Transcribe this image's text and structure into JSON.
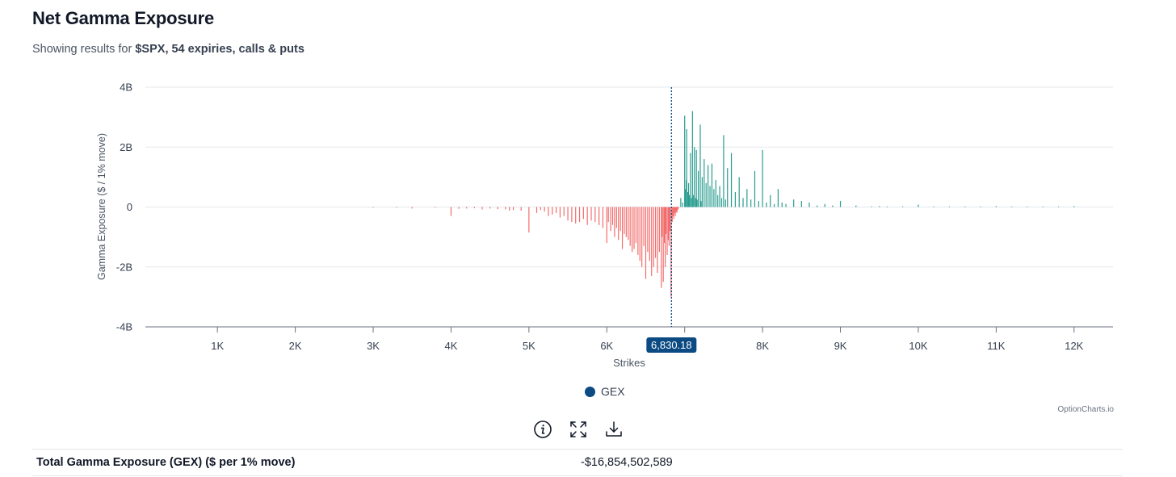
{
  "header": {
    "title": "Net Gamma Exposure",
    "subtitle_prefix": "Showing results for ",
    "subtitle_ticker": "$SPX",
    "subtitle_detail": ", 54 expiries, calls & puts"
  },
  "chart_data": {
    "type": "bar",
    "ylabel": "Gamma Exposure ($ / 1% move)",
    "xlabel": "Strikes",
    "ylim": [
      -4,
      4
    ],
    "y_unit": "B",
    "y_ticks": [
      -4,
      -2,
      0,
      2,
      4
    ],
    "y_tick_labels": [
      "-4B",
      "-2B",
      "0",
      "2B",
      "4B"
    ],
    "x_ticks": [
      1000,
      2000,
      3000,
      4000,
      5000,
      6000,
      7000,
      8000,
      9000,
      10000,
      11000,
      12000
    ],
    "x_tick_labels": [
      "1K",
      "2K",
      "3K",
      "4K",
      "5K",
      "6K",
      "7K",
      "8K",
      "9K",
      "10K",
      "11K",
      "12K"
    ],
    "xlim": [
      75,
      12500
    ],
    "spot": 6830.18,
    "spot_label": "6,830.18",
    "grid": true,
    "legend_position": "bottom-center",
    "colors": {
      "positive": "#2a9d8f",
      "negative": "#f26d6d",
      "spot_line": "#0b4a82",
      "legend": "#0b4a82"
    },
    "series": [
      {
        "name": "GEX",
        "points": [
          [
            3000,
            -0.01
          ],
          [
            3300,
            -0.02
          ],
          [
            3500,
            -0.05
          ],
          [
            3800,
            -0.02
          ],
          [
            4000,
            -0.3
          ],
          [
            4100,
            -0.06
          ],
          [
            4200,
            -0.05
          ],
          [
            4300,
            -0.04
          ],
          [
            4400,
            -0.08
          ],
          [
            4500,
            -0.05
          ],
          [
            4600,
            -0.07
          ],
          [
            4700,
            -0.08
          ],
          [
            4750,
            -0.12
          ],
          [
            4800,
            -0.1
          ],
          [
            4900,
            -0.12
          ],
          [
            5000,
            -0.85
          ],
          [
            5100,
            -0.2
          ],
          [
            5150,
            -0.1
          ],
          [
            5200,
            -0.15
          ],
          [
            5250,
            -0.3
          ],
          [
            5300,
            -0.25
          ],
          [
            5350,
            -0.2
          ],
          [
            5400,
            -0.35
          ],
          [
            5450,
            -0.3
          ],
          [
            5500,
            -0.45
          ],
          [
            5550,
            -0.5
          ],
          [
            5600,
            -0.55
          ],
          [
            5650,
            -0.5
          ],
          [
            5700,
            -0.4
          ],
          [
            5750,
            -0.6
          ],
          [
            5800,
            -0.45
          ],
          [
            5850,
            -0.5
          ],
          [
            5900,
            -0.6
          ],
          [
            5950,
            -0.7
          ],
          [
            6000,
            -1.2
          ],
          [
            6020,
            -0.5
          ],
          [
            6050,
            -0.8
          ],
          [
            6075,
            -0.6
          ],
          [
            6100,
            -1.0
          ],
          [
            6125,
            -0.7
          ],
          [
            6150,
            -1.1
          ],
          [
            6175,
            -0.8
          ],
          [
            6200,
            -1.4
          ],
          [
            6225,
            -0.9
          ],
          [
            6250,
            -1.0
          ],
          [
            6275,
            -1.1
          ],
          [
            6300,
            -1.3
          ],
          [
            6325,
            -1.5
          ],
          [
            6350,
            -1.4
          ],
          [
            6375,
            -1.2
          ],
          [
            6400,
            -1.6
          ],
          [
            6425,
            -1.8
          ],
          [
            6450,
            -2.0
          ],
          [
            6475,
            -1.3
          ],
          [
            6500,
            -2.4
          ],
          [
            6525,
            -1.5
          ],
          [
            6550,
            -1.8
          ],
          [
            6575,
            -2.3
          ],
          [
            6600,
            -2.0
          ],
          [
            6625,
            -1.7
          ],
          [
            6650,
            -2.2
          ],
          [
            6675,
            -1.5
          ],
          [
            6700,
            -2.7
          ],
          [
            6710,
            -1.0
          ],
          [
            6725,
            -2.5
          ],
          [
            6740,
            -1.2
          ],
          [
            6750,
            -2.0
          ],
          [
            6760,
            -0.9
          ],
          [
            6775,
            -1.6
          ],
          [
            6790,
            -1.1
          ],
          [
            6800,
            -1.3
          ],
          [
            6810,
            -0.8
          ],
          [
            6825,
            -3.0
          ],
          [
            6840,
            -0.5
          ],
          [
            6850,
            -0.3
          ],
          [
            6860,
            -0.4
          ],
          [
            6870,
            -0.2
          ],
          [
            6880,
            -0.3
          ],
          [
            6890,
            -0.15
          ],
          [
            6900,
            -0.2
          ],
          [
            6910,
            -0.1
          ],
          [
            6920,
            -0.05
          ],
          [
            6950,
            0.3
          ],
          [
            6975,
            0.15
          ],
          [
            7000,
            3.05
          ],
          [
            7010,
            0.6
          ],
          [
            7020,
            0.9
          ],
          [
            7025,
            2.6
          ],
          [
            7040,
            0.5
          ],
          [
            7050,
            0.8
          ],
          [
            7060,
            0.4
          ],
          [
            7075,
            1.8
          ],
          [
            7085,
            0.3
          ],
          [
            7100,
            3.2
          ],
          [
            7110,
            0.4
          ],
          [
            7125,
            2.0
          ],
          [
            7140,
            0.3
          ],
          [
            7150,
            1.9
          ],
          [
            7160,
            0.25
          ],
          [
            7175,
            1.2
          ],
          [
            7200,
            2.75
          ],
          [
            7210,
            0.2
          ],
          [
            7225,
            1.0
          ],
          [
            7250,
            1.6
          ],
          [
            7275,
            0.8
          ],
          [
            7300,
            1.4
          ],
          [
            7325,
            0.7
          ],
          [
            7350,
            1.45
          ],
          [
            7375,
            0.6
          ],
          [
            7400,
            0.9
          ],
          [
            7425,
            0.4
          ],
          [
            7450,
            0.7
          ],
          [
            7475,
            0.3
          ],
          [
            7500,
            2.4
          ],
          [
            7525,
            0.25
          ],
          [
            7550,
            1.3
          ],
          [
            7600,
            1.8
          ],
          [
            7650,
            0.5
          ],
          [
            7700,
            1.0
          ],
          [
            7750,
            0.3
          ],
          [
            7800,
            0.6
          ],
          [
            7850,
            0.25
          ],
          [
            7900,
            1.2
          ],
          [
            7950,
            0.2
          ],
          [
            8000,
            1.9
          ],
          [
            8050,
            0.15
          ],
          [
            8100,
            0.4
          ],
          [
            8150,
            0.1
          ],
          [
            8200,
            0.6
          ],
          [
            8250,
            0.15
          ],
          [
            8300,
            0.1
          ],
          [
            8400,
            0.25
          ],
          [
            8500,
            0.2
          ],
          [
            8600,
            0.15
          ],
          [
            8700,
            0.05
          ],
          [
            8800,
            0.1
          ],
          [
            8900,
            0.05
          ],
          [
            9000,
            0.2
          ],
          [
            9200,
            0.05
          ],
          [
            9400,
            0.02
          ],
          [
            9500,
            0.03
          ],
          [
            9600,
            0.02
          ],
          [
            9800,
            0.02
          ],
          [
            10000,
            0.08
          ],
          [
            10200,
            0.02
          ],
          [
            10400,
            0.02
          ],
          [
            10600,
            0.02
          ],
          [
            10800,
            0.02
          ],
          [
            11000,
            0.03
          ],
          [
            11200,
            0.02
          ],
          [
            11400,
            0.02
          ],
          [
            11600,
            0.02
          ],
          [
            11800,
            0.02
          ],
          [
            12000,
            0.03
          ]
        ]
      }
    ]
  },
  "legend": {
    "label": "GEX"
  },
  "credit": "OptionCharts.io",
  "toolbar": {
    "info_icon": "info-icon",
    "fullscreen_icon": "expand-icon",
    "download_icon": "download-icon"
  },
  "summary": {
    "label": "Total Gamma Exposure (GEX) ($ per 1% move)",
    "value": "-$16,854,502,589"
  }
}
